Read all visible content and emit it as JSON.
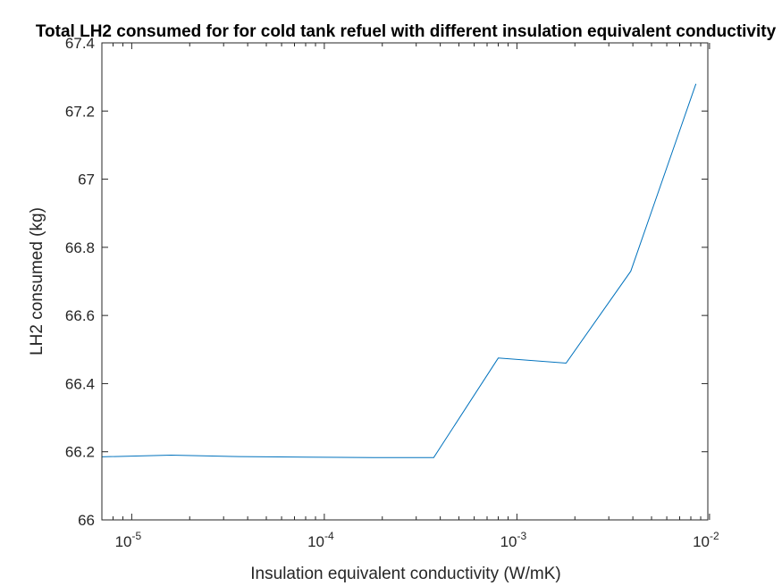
{
  "chart_data": {
    "type": "line",
    "title": "Total LH2 consumed for for cold tank refuel with different insulation equivalent conductivity",
    "xlabel": "Insulation equivalent conductivity (W/mK)",
    "ylabel": "LH2 consumed (kg)",
    "xscale": "log",
    "xlim": [
      7e-06,
      0.0098
    ],
    "ylim": [
      66,
      67.4
    ],
    "grid": false,
    "x_ticks": [
      {
        "value": 1e-05,
        "base": "10",
        "exp": "-5"
      },
      {
        "value": 0.0001,
        "base": "10",
        "exp": "-4"
      },
      {
        "value": 0.001,
        "base": "10",
        "exp": "-3"
      },
      {
        "value": 0.01,
        "base": "10",
        "exp": "-2"
      }
    ],
    "y_ticks": [
      "66",
      "66.2",
      "66.4",
      "66.6",
      "66.8",
      "67",
      "67.2",
      "67.4"
    ],
    "series": [
      {
        "color": "#0072bd",
        "x": [
          7e-06,
          1.6e-05,
          3.6e-05,
          8e-05,
          0.00018,
          0.00037,
          0.0008,
          0.0018,
          0.0039,
          0.0085
        ],
        "y": [
          66.185,
          66.19,
          66.186,
          66.184,
          66.183,
          66.183,
          66.475,
          66.46,
          66.73,
          67.28
        ]
      }
    ]
  }
}
